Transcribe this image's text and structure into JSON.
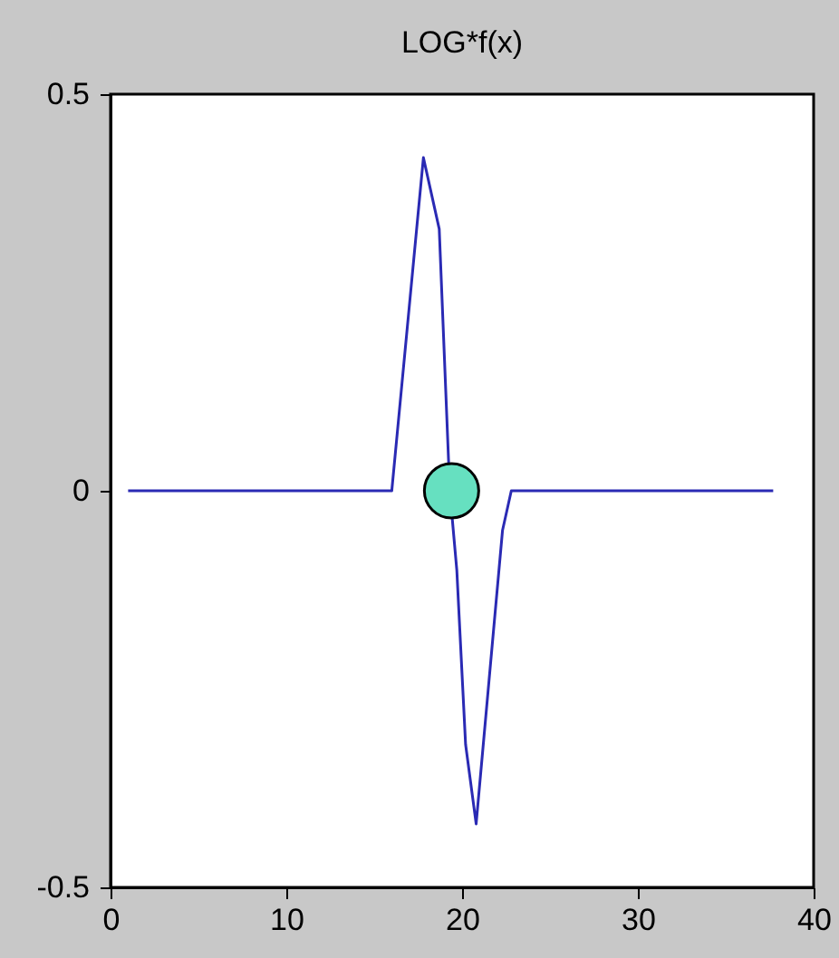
{
  "chart_data": {
    "type": "line",
    "title": "LOG*f(x)",
    "xlim": [
      0,
      40
    ],
    "ylim": [
      -0.5,
      0.5
    ],
    "xticks": [
      0,
      10,
      20,
      30,
      40
    ],
    "yticks": [
      -0.5,
      0,
      0.5
    ],
    "series": [
      {
        "color": "#2a2ab4",
        "x": [
          1,
          16,
          17.8,
          18.7,
          19.3,
          19.7,
          20.2,
          20.8,
          22.3,
          22.8,
          37.7
        ],
        "values": [
          0,
          0,
          0.42,
          0.33,
          0,
          -0.1,
          -0.32,
          -0.42,
          -0.05,
          0,
          0
        ]
      },
      {
        "type": "scatter",
        "color": "#66e0c0",
        "marker": "circle",
        "x": [
          19.4
        ],
        "values": [
          0
        ]
      }
    ]
  }
}
